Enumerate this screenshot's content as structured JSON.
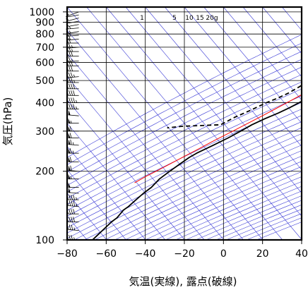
{
  "chart_data": {
    "type": "skew-t",
    "xlabel": "気温(実線), 露点(破線)",
    "ylabel": "気圧(hPa)",
    "xlim": [
      -80,
      40
    ],
    "ylim_hpa": [
      1050,
      100
    ],
    "x_scale": "linear, skewed with height",
    "y_scale": "log-pressure",
    "x_ticks": [
      -80,
      -60,
      -40,
      -20,
      0,
      20,
      40
    ],
    "x_tick_labels": [
      "−80",
      "−60",
      "−40",
      "−20",
      "0",
      "20",
      "40"
    ],
    "y_ticks": [
      100,
      200,
      300,
      400,
      500,
      600,
      700,
      800,
      900,
      1000
    ],
    "y_tick_labels": [
      "100",
      "200",
      "300",
      "400",
      "500",
      "600",
      "700",
      "800",
      "900",
      "1000"
    ],
    "grid": true,
    "mixing_ratio_labels": [
      "1",
      "5",
      "10",
      "15",
      "20g"
    ],
    "series": [
      {
        "role": "temperature",
        "style": "solid",
        "color": "#000000",
        "points": [
          {
            "p": 1015,
            "t": 19
          },
          {
            "p": 1000,
            "t": 19
          },
          {
            "p": 970,
            "t": 17
          },
          {
            "p": 940,
            "t": 15
          },
          {
            "p": 900,
            "t": 12
          },
          {
            "p": 870,
            "t": 10
          },
          {
            "p": 850,
            "t": 8.5
          },
          {
            "p": 820,
            "t": 7
          },
          {
            "p": 790,
            "t": 5
          },
          {
            "p": 760,
            "t": 4
          },
          {
            "p": 730,
            "t": 2.5
          },
          {
            "p": 700,
            "t": 2
          },
          {
            "p": 680,
            "t": 2
          },
          {
            "p": 650,
            "t": 1.5
          },
          {
            "p": 620,
            "t": 1.5
          },
          {
            "p": 600,
            "t": 0.5
          },
          {
            "p": 580,
            "t": -0.5
          },
          {
            "p": 555,
            "t": -5
          },
          {
            "p": 530,
            "t": -6
          },
          {
            "p": 500,
            "t": -9
          },
          {
            "p": 470,
            "t": -12
          },
          {
            "p": 440,
            "t": -15.5
          },
          {
            "p": 410,
            "t": -19
          },
          {
            "p": 380,
            "t": -23
          },
          {
            "p": 360,
            "t": -26.5
          },
          {
            "p": 340,
            "t": -31
          },
          {
            "p": 320,
            "t": -35
          },
          {
            "p": 300,
            "t": -38
          },
          {
            "p": 280,
            "t": -41.5
          },
          {
            "p": 260,
            "t": -46
          },
          {
            "p": 240,
            "t": -51
          },
          {
            "p": 230,
            "t": -53
          },
          {
            "p": 215,
            "t": -55
          },
          {
            "p": 200,
            "t": -57
          },
          {
            "p": 185,
            "t": -59
          },
          {
            "p": 170,
            "t": -59.5
          },
          {
            "p": 160,
            "t": -61
          },
          {
            "p": 150,
            "t": -62
          },
          {
            "p": 140,
            "t": -63
          },
          {
            "p": 135,
            "t": -64
          },
          {
            "p": 125,
            "t": -64
          },
          {
            "p": 120,
            "t": -65
          },
          {
            "p": 110,
            "t": -66
          },
          {
            "p": 105,
            "t": -66.5
          },
          {
            "p": 100,
            "t": -67
          }
        ]
      },
      {
        "role": "dewpoint",
        "style": "dashed",
        "color": "#000000",
        "points": [
          {
            "p": 1015,
            "t": 16
          },
          {
            "p": 1000,
            "t": 15
          },
          {
            "p": 980,
            "t": 14
          },
          {
            "p": 950,
            "t": 11
          },
          {
            "p": 920,
            "t": 10
          },
          {
            "p": 900,
            "t": 8
          },
          {
            "p": 880,
            "t": 7.5
          },
          {
            "p": 850,
            "t": 5
          },
          {
            "p": 820,
            "t": 3
          },
          {
            "p": 790,
            "t": 2
          },
          {
            "p": 760,
            "t": 0.5
          },
          {
            "p": 730,
            "t": -1
          },
          {
            "p": 700,
            "t": -2
          },
          {
            "p": 680,
            "t": -13
          },
          {
            "p": 670,
            "t": -19
          },
          {
            "p": 660,
            "t": -19.5
          },
          {
            "p": 640,
            "t": -19
          },
          {
            "p": 600,
            "t": -18.5
          },
          {
            "p": 580,
            "t": -19
          },
          {
            "p": 555,
            "t": -21
          },
          {
            "p": 530,
            "t": -23
          },
          {
            "p": 500,
            "t": -25
          },
          {
            "p": 470,
            "t": -27
          },
          {
            "p": 440,
            "t": -30
          },
          {
            "p": 420,
            "t": -33
          },
          {
            "p": 400,
            "t": -37
          },
          {
            "p": 370,
            "t": -42
          },
          {
            "p": 345,
            "t": -47
          },
          {
            "p": 320,
            "t": -51
          },
          {
            "p": 315,
            "t": -70
          },
          {
            "p": 310,
            "t": -77
          }
        ]
      },
      {
        "role": "parcel",
        "style": "solid",
        "color": "#ff0000",
        "points": [
          {
            "p": 1015,
            "t": 19
          },
          {
            "p": 980,
            "t": 16
          },
          {
            "p": 950,
            "t": 13.5
          },
          {
            "p": 920,
            "t": 11.5
          },
          {
            "p": 900,
            "t": 10.5
          },
          {
            "p": 850,
            "t": 8
          },
          {
            "p": 800,
            "t": 5
          },
          {
            "p": 750,
            "t": 2.5
          },
          {
            "p": 700,
            "t": 0
          },
          {
            "p": 650,
            "t": -3
          },
          {
            "p": 600,
            "t": -6.5
          },
          {
            "p": 550,
            "t": -10.5
          },
          {
            "p": 500,
            "t": -15
          },
          {
            "p": 450,
            "t": -20.5
          },
          {
            "p": 400,
            "t": -26.5
          },
          {
            "p": 350,
            "t": -33.5
          },
          {
            "p": 300,
            "t": -42
          },
          {
            "p": 270,
            "t": -48
          },
          {
            "p": 250,
            "t": -52
          },
          {
            "p": 230,
            "t": -56.5
          },
          {
            "p": 200,
            "t": -64
          },
          {
            "p": 190,
            "t": -67
          },
          {
            "p": 178,
            "t": -70
          }
        ]
      }
    ],
    "wind_barbs": {
      "column_t": -74,
      "pressures": [
        1000,
        970,
        940,
        910,
        880,
        850,
        820,
        790,
        760,
        730,
        700,
        670,
        640,
        610,
        580,
        550,
        520,
        490,
        460,
        430,
        400,
        375,
        350,
        325,
        300,
        280,
        260,
        240,
        220,
        200,
        185,
        170,
        160,
        150,
        140,
        130,
        120,
        110,
        100
      ],
      "direction_deg": [
        250,
        260,
        255,
        260,
        260,
        265,
        260,
        265,
        265,
        270,
        265,
        270,
        270,
        265,
        270,
        270,
        265,
        270,
        270,
        270,
        270,
        270,
        275,
        270,
        270,
        270,
        275,
        270,
        270,
        275,
        270,
        270,
        275,
        270,
        275,
        270,
        270,
        275,
        270
      ],
      "speed_kt": [
        5,
        5,
        10,
        10,
        10,
        15,
        15,
        15,
        20,
        20,
        25,
        25,
        30,
        25,
        30,
        30,
        35,
        35,
        40,
        40,
        45,
        45,
        50,
        55,
        60,
        60,
        65,
        65,
        60,
        60,
        55,
        50,
        50,
        45,
        45,
        40,
        40,
        35,
        35
      ]
    }
  }
}
